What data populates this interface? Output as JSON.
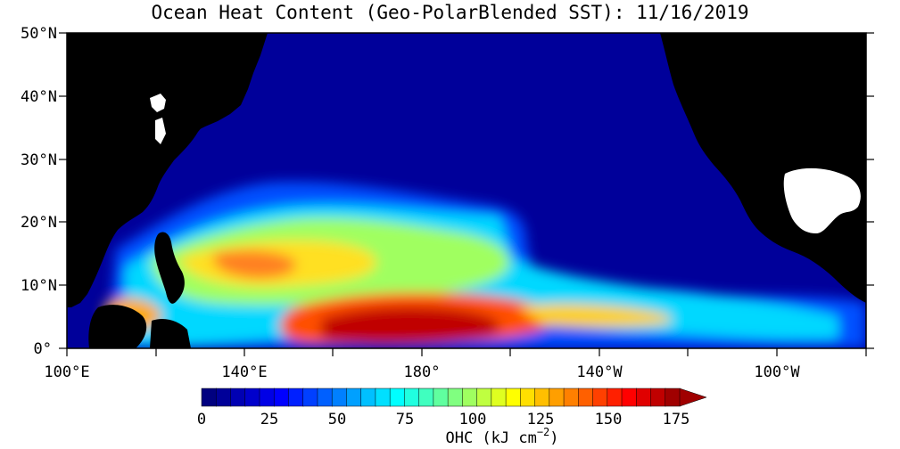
{
  "title": "Ocean Heat Content (Geo-PolarBlended SST): 11/16/2019",
  "map": {
    "lat_labels": [
      "50°N",
      "40°N",
      "30°N",
      "20°N",
      "10°N",
      "0°"
    ],
    "lon_labels": [
      "100°E",
      "140°E",
      "180°",
      "140°W",
      "100°W"
    ]
  },
  "colorbar": {
    "label_prefix": "OHC (kJ cm",
    "label_exp": "−2",
    "label_suffix": ")",
    "ticks": [
      "0",
      "25",
      "50",
      "75",
      "100",
      "125",
      "150",
      "175"
    ],
    "min": 0,
    "max": 175,
    "colors": [
      "#000080",
      "#000099",
      "#0000b3",
      "#0000cc",
      "#0000e6",
      "#0000ff",
      "#0020ff",
      "#0040ff",
      "#0060ff",
      "#0080ff",
      "#00a0ff",
      "#00c0ff",
      "#00e0ff",
      "#00ffff",
      "#20ffdf",
      "#40ffbf",
      "#60ff9f",
      "#80ff80",
      "#9fff60",
      "#bfff40",
      "#dfff20",
      "#ffff00",
      "#ffdf00",
      "#ffbf00",
      "#ff9f00",
      "#ff8000",
      "#ff6000",
      "#ff4000",
      "#ff2000",
      "#ff0000",
      "#e00000",
      "#c00000",
      "#a00000"
    ]
  }
}
